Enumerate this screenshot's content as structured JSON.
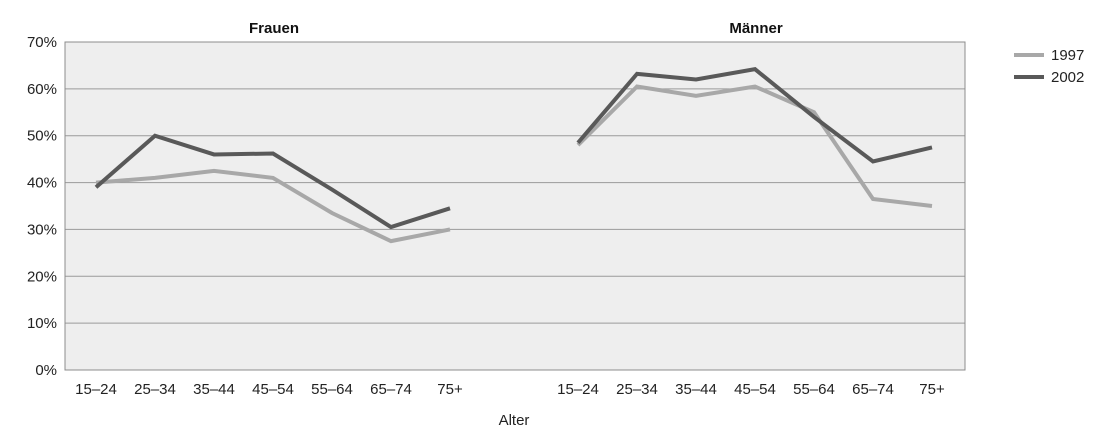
{
  "chart_data": {
    "type": "line",
    "title": "",
    "xlabel": "Alter",
    "ylabel": "",
    "ylim": [
      0,
      70
    ],
    "y_ticks": [
      0,
      10,
      20,
      30,
      40,
      50,
      60,
      70
    ],
    "y_tick_format": "%",
    "grid": true,
    "legend": {
      "placement": "top-right",
      "entries": [
        "1997",
        "2002"
      ]
    },
    "categories": [
      "15–24",
      "25–34",
      "35–44",
      "45–54",
      "55–64",
      "65–74",
      "75+"
    ],
    "series_colors": {
      "1997": "#a8a8a8",
      "2002": "#595959"
    },
    "panels": [
      {
        "title": "Frauen",
        "series": [
          {
            "name": "1997",
            "values": [
              40,
              41,
              42.5,
              41,
              33.5,
              27.5,
              30
            ]
          },
          {
            "name": "2002",
            "values": [
              39,
              50,
              46,
              46.2,
              38.5,
              30.5,
              34.5
            ]
          }
        ]
      },
      {
        "title": "Männer",
        "series": [
          {
            "name": "1997",
            "values": [
              48,
              60.5,
              58.5,
              60.5,
              55,
              36.5,
              35
            ]
          },
          {
            "name": "2002",
            "values": [
              48.5,
              63.2,
              62,
              64.2,
              54,
              44.5,
              47.5
            ]
          }
        ]
      }
    ]
  }
}
